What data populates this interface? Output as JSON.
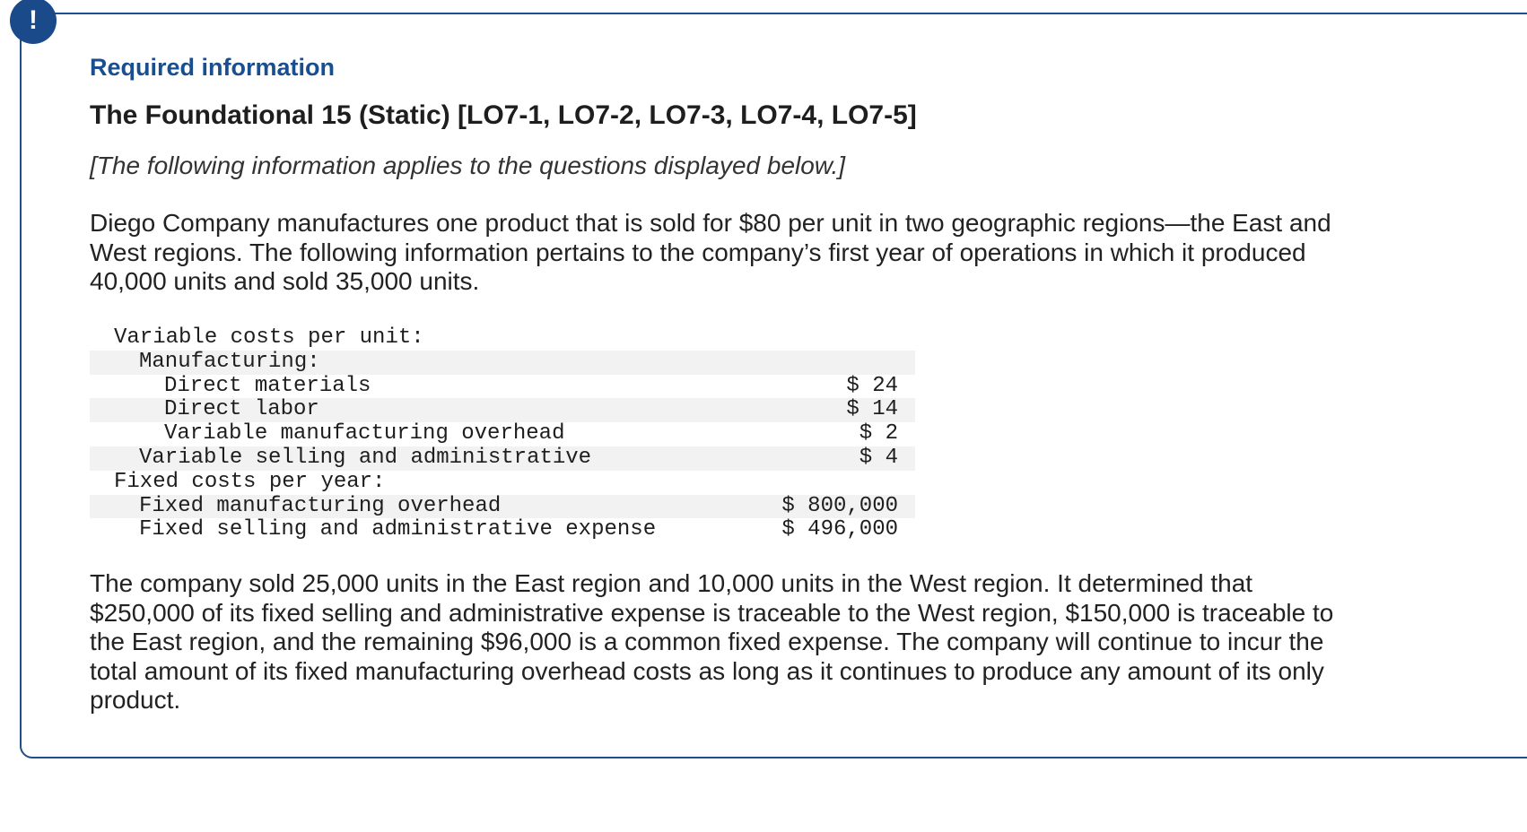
{
  "badge": {
    "symbol": "!"
  },
  "header": {
    "required": "Required information",
    "title": "The Foundational 15 (Static) [LO7-1, LO7-2, LO7-3, LO7-4, LO7-5]",
    "note": "[The following information applies to the questions displayed below.]"
  },
  "intro": "Diego Company manufactures one product that is sold for $80 per unit in two geographic regions—the East and West regions. The following information pertains to the company’s first year of operations in which it produced 40,000 units and sold 35,000 units.",
  "table": {
    "rows": [
      {
        "label": "Variable costs per unit:",
        "value": ""
      },
      {
        "label": "Manufacturing:",
        "value": ""
      },
      {
        "label": "Direct materials",
        "value": "$ 24"
      },
      {
        "label": "Direct labor",
        "value": "$ 14"
      },
      {
        "label": "Variable manufacturing overhead",
        "value": "$ 2"
      },
      {
        "label": "Variable selling and administrative",
        "value": "$ 4"
      },
      {
        "label": "Fixed costs per year:",
        "value": ""
      },
      {
        "label": "Fixed manufacturing overhead",
        "value": "$ 800,000"
      },
      {
        "label": "Fixed selling and administrative expense",
        "value": "$ 496,000"
      }
    ]
  },
  "closing": "The company sold 25,000 units in the East region and 10,000 units in the West region. It determined that $250,000 of its fixed selling and administrative expense is traceable to the West region, $150,000 is traceable to the East region, and the remaining $96,000 is a common fixed expense. The company will continue to incur the total amount of its fixed manufacturing overhead costs as long as it continues to produce any amount of its only product.",
  "colors": {
    "accent": "#1a4f8f",
    "border": "#1f4e8c",
    "row_shade": "#f2f2f2"
  }
}
